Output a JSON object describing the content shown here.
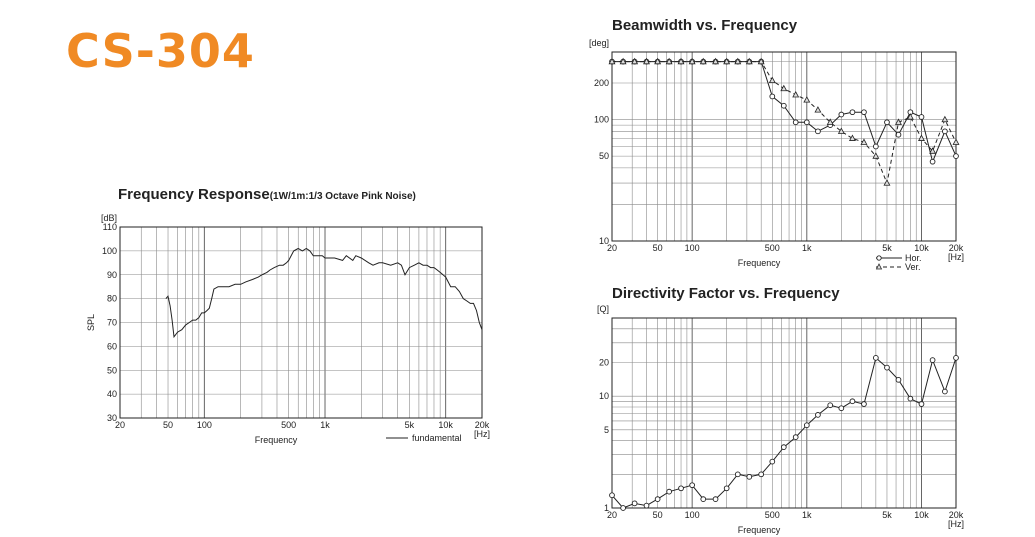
{
  "product": {
    "name": "CS-304",
    "color": "#f08a24"
  },
  "chart_data": [
    {
      "id": "fr",
      "type": "line",
      "title": "Frequency Response",
      "subtitle": "(1W/1m:1/3 Octave Pink Noise)",
      "xlabel": "Frequency",
      "ylabel": "SPL",
      "yunit": "[dB]",
      "xunit": "[Hz]",
      "xscale": "log",
      "xlim": [
        20,
        20000
      ],
      "ylim": [
        30,
        110
      ],
      "grid": true,
      "xticks": [
        20,
        50,
        100,
        500,
        1000,
        5000,
        10000,
        20000
      ],
      "xtick_labels": [
        "20",
        "50",
        "100",
        "500",
        "1k",
        "5k",
        "10k",
        "20k"
      ],
      "yticks": [
        30,
        40,
        50,
        60,
        70,
        80,
        90,
        100,
        110
      ],
      "ytick_labels": [
        "30",
        "40",
        "50",
        "60",
        "70",
        "80",
        "90",
        "100",
        "110"
      ],
      "legend": [
        {
          "label": "fundamental",
          "style": "solid"
        }
      ],
      "legend_position": "bottom-right",
      "series": [
        {
          "name": "fundamental",
          "style": "solid",
          "markers": "none",
          "x": [
            48,
            50,
            52,
            54,
            56,
            60,
            65,
            70,
            75,
            80,
            85,
            90,
            95,
            100,
            105,
            110,
            115,
            120,
            130,
            140,
            150,
            160,
            180,
            200,
            220,
            250,
            280,
            300,
            330,
            350,
            380,
            420,
            450,
            480,
            500,
            550,
            600,
            650,
            700,
            750,
            800,
            850,
            900,
            950,
            1000,
            1100,
            1200,
            1400,
            1500,
            1700,
            1800,
            2000,
            2300,
            2500,
            2800,
            3000,
            3500,
            4000,
            4300,
            4600,
            5000,
            5500,
            6000,
            6500,
            7000,
            7500,
            8000,
            8500,
            9000,
            9500,
            10000,
            11000,
            12000,
            13000,
            14000,
            15000,
            16000,
            17000,
            18000,
            19000,
            20000
          ],
          "values": [
            80,
            81,
            77,
            71,
            64,
            66,
            67,
            69,
            70,
            71,
            71,
            72,
            74,
            74,
            75,
            76,
            80,
            84,
            85,
            85,
            85,
            85,
            86,
            86,
            87,
            88,
            89,
            90,
            91,
            92,
            93,
            94,
            94,
            95,
            96,
            100,
            101,
            100,
            101,
            100,
            98,
            98,
            98,
            98,
            97,
            97,
            97,
            96,
            98,
            96,
            98,
            97,
            95,
            94,
            95,
            95,
            94,
            95,
            94,
            90,
            93,
            94,
            95,
            94,
            94,
            93,
            93,
            92,
            91,
            90,
            89,
            85,
            85,
            83,
            80,
            79,
            78,
            78,
            75,
            70,
            67
          ]
        }
      ]
    },
    {
      "id": "bw",
      "type": "line",
      "title": "Beamwidth vs. Frequency",
      "xlabel": "Frequency",
      "ylabel": "",
      "yunit": "[deg]",
      "xunit": "[Hz]",
      "xscale": "log",
      "yscale": "log",
      "xlim": [
        20,
        20000
      ],
      "ylim": [
        10,
        360
      ],
      "grid": true,
      "xticks": [
        20,
        50,
        100,
        500,
        1000,
        5000,
        10000,
        20000
      ],
      "xtick_labels": [
        "20",
        "50",
        "100",
        "500",
        "1k",
        "5k",
        "10k",
        "20k"
      ],
      "yticks": [
        10,
        50,
        100,
        200
      ],
      "ytick_labels": [
        "10",
        "50",
        "100",
        "200"
      ],
      "legend": [
        {
          "label": "Hor.",
          "style": "solid"
        },
        {
          "label": "Ver.",
          "style": "dashed"
        }
      ],
      "legend_position": "bottom-right",
      "series": [
        {
          "name": "Hor.",
          "style": "solid",
          "marker": "circle",
          "x": [
            20,
            25,
            31.5,
            40,
            50,
            63,
            80,
            100,
            125,
            160,
            200,
            250,
            315,
            400,
            500,
            630,
            800,
            1000,
            1250,
            1600,
            2000,
            2500,
            3150,
            4000,
            5000,
            6300,
            8000,
            10000,
            12500,
            16000,
            20000
          ],
          "values": [
            300,
            300,
            300,
            300,
            300,
            300,
            300,
            300,
            300,
            300,
            300,
            300,
            300,
            300,
            155,
            130,
            95,
            95,
            80,
            90,
            110,
            115,
            115,
            60,
            95,
            75,
            115,
            105,
            45,
            80,
            50
          ]
        },
        {
          "name": "Ver.",
          "style": "dashed",
          "marker": "triangle",
          "x": [
            20,
            25,
            31.5,
            40,
            50,
            63,
            80,
            100,
            125,
            160,
            200,
            250,
            315,
            400,
            500,
            630,
            800,
            1000,
            1250,
            1600,
            2000,
            2500,
            3150,
            4000,
            5000,
            6300,
            8000,
            10000,
            12500,
            16000,
            20000
          ],
          "values": [
            300,
            300,
            300,
            300,
            300,
            300,
            300,
            300,
            300,
            300,
            300,
            300,
            300,
            300,
            210,
            180,
            160,
            145,
            120,
            95,
            80,
            70,
            65,
            50,
            30,
            95,
            105,
            70,
            55,
            100,
            65
          ]
        }
      ]
    },
    {
      "id": "df",
      "type": "line",
      "title": "Directivity Factor vs. Frequency",
      "xlabel": "Frequency",
      "ylabel": "",
      "yunit": "[Q]",
      "xunit": "[Hz]",
      "xscale": "log",
      "yscale": "log",
      "xlim": [
        20,
        20000
      ],
      "ylim": [
        1,
        50
      ],
      "grid": true,
      "xticks": [
        20,
        50,
        100,
        500,
        1000,
        5000,
        10000,
        20000
      ],
      "xtick_labels": [
        "20",
        "50",
        "100",
        "500",
        "1k",
        "5k",
        "10k",
        "20k"
      ],
      "yticks": [
        1,
        5,
        10,
        20
      ],
      "ytick_labels": [
        "1",
        "5",
        "10",
        "20"
      ],
      "legend": [],
      "series": [
        {
          "name": "Q",
          "style": "solid",
          "marker": "circle",
          "x": [
            20,
            25,
            31.5,
            40,
            50,
            63,
            80,
            100,
            125,
            160,
            200,
            250,
            315,
            400,
            500,
            630,
            800,
            1000,
            1250,
            1600,
            2000,
            2500,
            3150,
            4000,
            5000,
            6300,
            8000,
            10000,
            12500,
            16000,
            20000
          ],
          "values": [
            1.3,
            1.0,
            1.1,
            1.05,
            1.2,
            1.4,
            1.5,
            1.6,
            1.2,
            1.2,
            1.5,
            2.0,
            1.9,
            2.0,
            2.6,
            3.5,
            4.3,
            5.5,
            6.8,
            8.3,
            7.8,
            9.0,
            8.5,
            22,
            18,
            14,
            9.5,
            8.5,
            21,
            11,
            22
          ]
        }
      ]
    }
  ]
}
